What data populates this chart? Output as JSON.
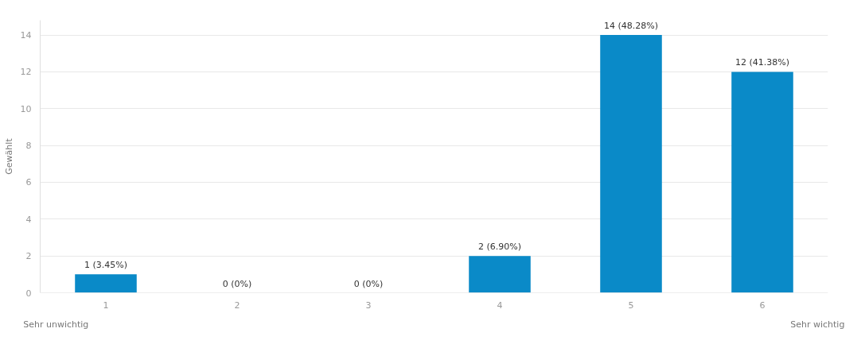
{
  "chart_data": {
    "type": "bar",
    "ylabel": "Gewählt",
    "categories": [
      "1",
      "2",
      "3",
      "4",
      "5",
      "6"
    ],
    "values": [
      1,
      0,
      0,
      2,
      14,
      12
    ],
    "color": "#0a8ac8",
    "value_labels": [
      "1 (3.45%)",
      "0 (0%)",
      "0 (0%)",
      "2 (6.90%)",
      "14 (48.28%)",
      "12 (41.38%)"
    ],
    "ylim": [
      0,
      14.8
    ],
    "yticks": [
      0,
      2,
      4,
      6,
      8,
      10,
      12,
      14
    ],
    "grid": "y",
    "annotations": [
      "Sehr unwichtig",
      "Sehr wichtig"
    ]
  }
}
